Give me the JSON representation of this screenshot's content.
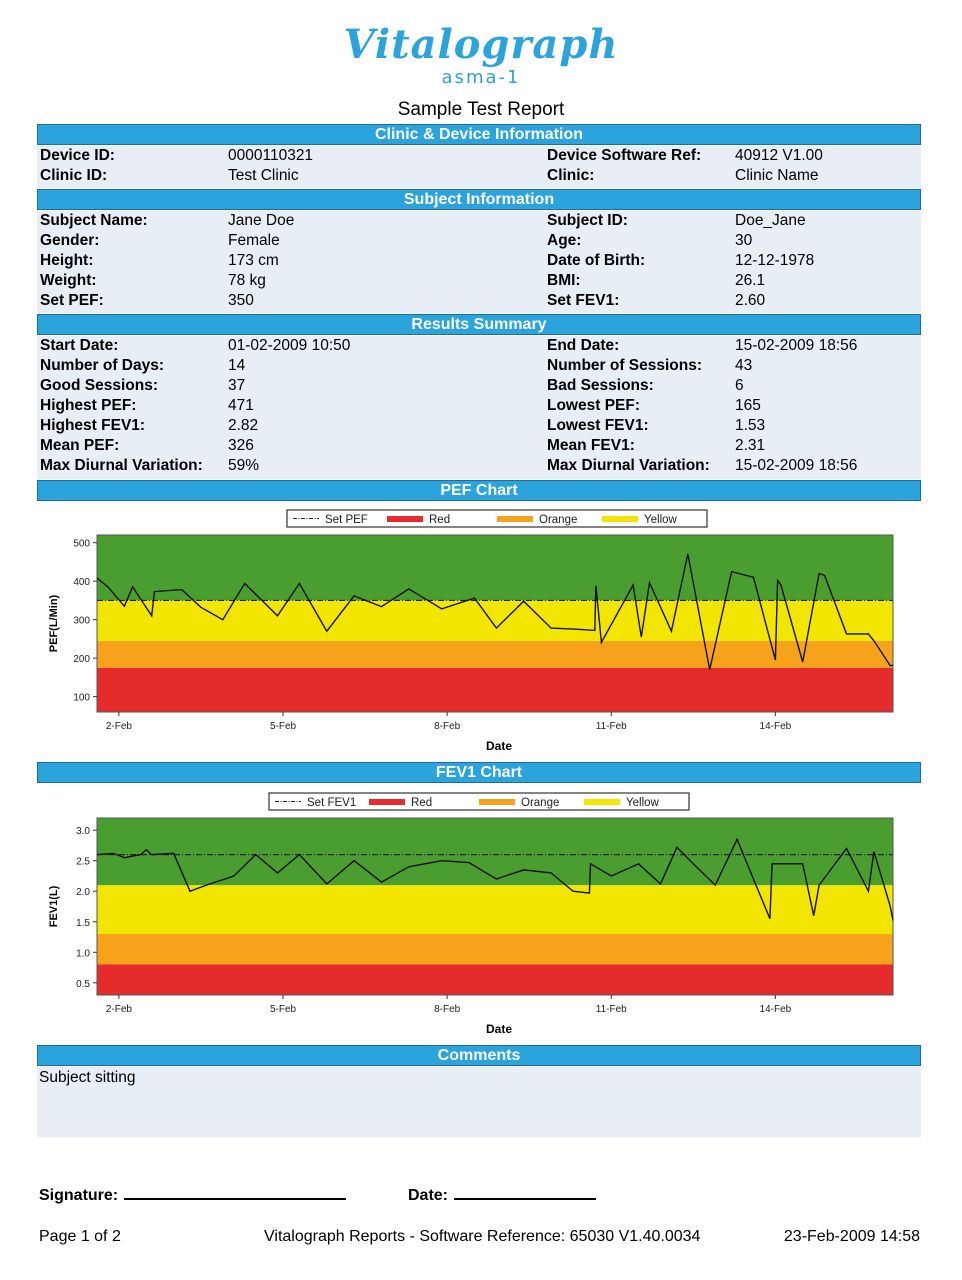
{
  "logo": {
    "brand": "Vitalograph",
    "product": "asma-1"
  },
  "report_title": "Sample Test Report",
  "sections": {
    "clinic": "Clinic & Device Information",
    "subject": "Subject Information",
    "results": "Results Summary",
    "pef_chart": "PEF Chart",
    "fev1_chart": "FEV1 Chart",
    "comments": "Comments"
  },
  "clinic_rows": [
    {
      "l1": "Device ID:",
      "v1": "0000110321",
      "l2": "Device Software Ref:",
      "v2": "40912 V1.00"
    },
    {
      "l1": "Clinic ID:",
      "v1": "Test Clinic",
      "l2": "Clinic:",
      "v2": "Clinic Name"
    }
  ],
  "subject_rows": [
    {
      "l1": "Subject Name:",
      "v1": "Jane  Doe",
      "l2": "Subject ID:",
      "v2": "Doe_Jane"
    },
    {
      "l1": "Gender:",
      "v1": "Female",
      "l2": "Age:",
      "v2": "30"
    },
    {
      "l1": "Height:",
      "v1": "173 cm",
      "l2": "Date of Birth:",
      "v2": "12-12-1978"
    },
    {
      "l1": "Weight:",
      "v1": "78 kg",
      "l2": "BMI:",
      "v2": "26.1"
    },
    {
      "l1": "Set PEF:",
      "v1": "350",
      "l2": "Set FEV1:",
      "v2": "2.60"
    }
  ],
  "results_rows": [
    {
      "l1": "Start Date:",
      "v1": "01-02-2009 10:50",
      "l2": "End Date:",
      "v2": "15-02-2009 18:56"
    },
    {
      "l1": "Number of Days:",
      "v1": "14",
      "l2": "Number of Sessions:",
      "v2": "43"
    },
    {
      "l1": "Good Sessions:",
      "v1": "37",
      "l2": "Bad Sessions:",
      "v2": "6"
    },
    {
      "l1": "Highest PEF:",
      "v1": "471",
      "l2": "Lowest PEF:",
      "v2": "165"
    },
    {
      "l1": "Highest FEV1:",
      "v1": "2.82",
      "l2": "Lowest FEV1:",
      "v2": "1.53"
    },
    {
      "l1": "Mean PEF:",
      "v1": "326",
      "l2": "Mean FEV1:",
      "v2": "2.31"
    },
    {
      "l1": "Max Diurnal Variation:",
      "v1": "59%",
      "l2": "Max Diurnal Variation:",
      "v2": "15-02-2009 18:56"
    }
  ],
  "comments": "Subject sitting",
  "signature": {
    "signature_label": "Signature:",
    "date_label": "Date:"
  },
  "footer": {
    "page": "Page 1 of 2",
    "software": "Vitalograph Reports - Software Reference: 65030 V1.40.0034",
    "printed": "23-Feb-2009 14:58"
  },
  "colors": {
    "header_blue": "#2ba3dc",
    "zone_green": "#4a9e2f",
    "zone_yellow": "#f2e500",
    "zone_orange": "#f7a21b",
    "zone_red": "#e52b2b"
  },
  "chart_data": [
    {
      "type": "line",
      "xlabel": "Date",
      "ylabel": "PEF(L/Min)",
      "x_ticks": [
        "2-Feb",
        "5-Feb",
        "8-Feb",
        "11-Feb",
        "14-Feb"
      ],
      "x_range": [
        1.6,
        16.15
      ],
      "y_ticks": [
        100,
        200,
        300,
        400,
        500
      ],
      "ylim": [
        60,
        520
      ],
      "legend": [
        "Set PEF",
        "Red",
        "Orange",
        "Yellow"
      ],
      "set_value": 350,
      "zones": [
        {
          "name": "Red",
          "from": 60,
          "to": 175,
          "color": "#e52b2b"
        },
        {
          "name": "Orange",
          "from": 175,
          "to": 245,
          "color": "#f7a21b"
        },
        {
          "name": "Yellow",
          "from": 245,
          "to": 350,
          "color": "#f2e500"
        },
        {
          "name": "Green",
          "from": 350,
          "to": 520,
          "color": "#4a9e2f"
        }
      ],
      "series": [
        {
          "x": [
            1.6,
            1.8,
            2.1,
            2.25,
            2.6,
            2.65,
            3.15,
            3.5,
            3.9,
            4.3,
            4.9,
            5.3,
            5.8,
            6.3,
            6.8,
            7.3,
            7.9,
            8.5,
            8.9,
            9.4,
            9.9,
            10.4,
            10.7,
            10.72,
            10.82,
            11.4,
            11.55,
            11.7,
            12.1,
            12.4,
            12.8,
            13.2,
            13.6,
            14.0,
            14.04,
            14.1,
            14.5,
            14.8,
            14.9,
            15.3,
            15.7,
            15.8,
            16.1,
            16.15
          ],
          "y": [
            408,
            385,
            335,
            385,
            310,
            373,
            378,
            332,
            300,
            394,
            310,
            394,
            270,
            362,
            334,
            380,
            328,
            356,
            278,
            348,
            278,
            275,
            272,
            388,
            241,
            390,
            255,
            396,
            270,
            471,
            170,
            425,
            410,
            195,
            402,
            391,
            190,
            420,
            415,
            263,
            263,
            245,
            180,
            182
          ]
        }
      ]
    },
    {
      "type": "line",
      "xlabel": "Date",
      "ylabel": "FEV1(L)",
      "x_ticks": [
        "2-Feb",
        "5-Feb",
        "8-Feb",
        "11-Feb",
        "14-Feb"
      ],
      "x_range": [
        1.6,
        16.15
      ],
      "y_ticks": [
        0.5,
        1.0,
        1.5,
        2.0,
        2.5,
        3.0
      ],
      "ylim": [
        0.3,
        3.2
      ],
      "legend": [
        "Set FEV1",
        "Red",
        "Orange",
        "Yellow"
      ],
      "set_value": 2.6,
      "zones": [
        {
          "name": "Red",
          "from": 0.3,
          "to": 0.8,
          "color": "#e52b2b"
        },
        {
          "name": "Orange",
          "from": 0.8,
          "to": 1.3,
          "color": "#f7a21b"
        },
        {
          "name": "Yellow",
          "from": 1.3,
          "to": 2.1,
          "color": "#f2e500"
        },
        {
          "name": "Green",
          "from": 2.1,
          "to": 3.2,
          "color": "#4a9e2f"
        }
      ],
      "series": [
        {
          "x": [
            1.6,
            1.9,
            2.1,
            2.4,
            2.5,
            2.6,
            3.0,
            3.3,
            3.6,
            4.1,
            4.5,
            4.9,
            5.3,
            5.8,
            6.3,
            6.8,
            7.3,
            7.9,
            8.4,
            8.9,
            9.4,
            9.9,
            10.3,
            10.6,
            10.62,
            11.0,
            11.5,
            11.9,
            12.2,
            12.5,
            12.9,
            13.3,
            13.9,
            13.94,
            14.0,
            14.5,
            14.7,
            14.8,
            15.3,
            15.7,
            15.8,
            16.1,
            16.15
          ],
          "y": [
            2.6,
            2.62,
            2.55,
            2.6,
            2.68,
            2.6,
            2.62,
            2.0,
            2.1,
            2.25,
            2.6,
            2.3,
            2.6,
            2.12,
            2.5,
            2.15,
            2.4,
            2.5,
            2.47,
            2.2,
            2.35,
            2.3,
            2.0,
            1.97,
            2.45,
            2.25,
            2.45,
            2.12,
            2.72,
            2.45,
            2.1,
            2.85,
            1.55,
            2.45,
            2.45,
            2.45,
            1.6,
            2.1,
            2.7,
            2.0,
            2.65,
            1.75,
            1.52
          ]
        }
      ]
    }
  ]
}
